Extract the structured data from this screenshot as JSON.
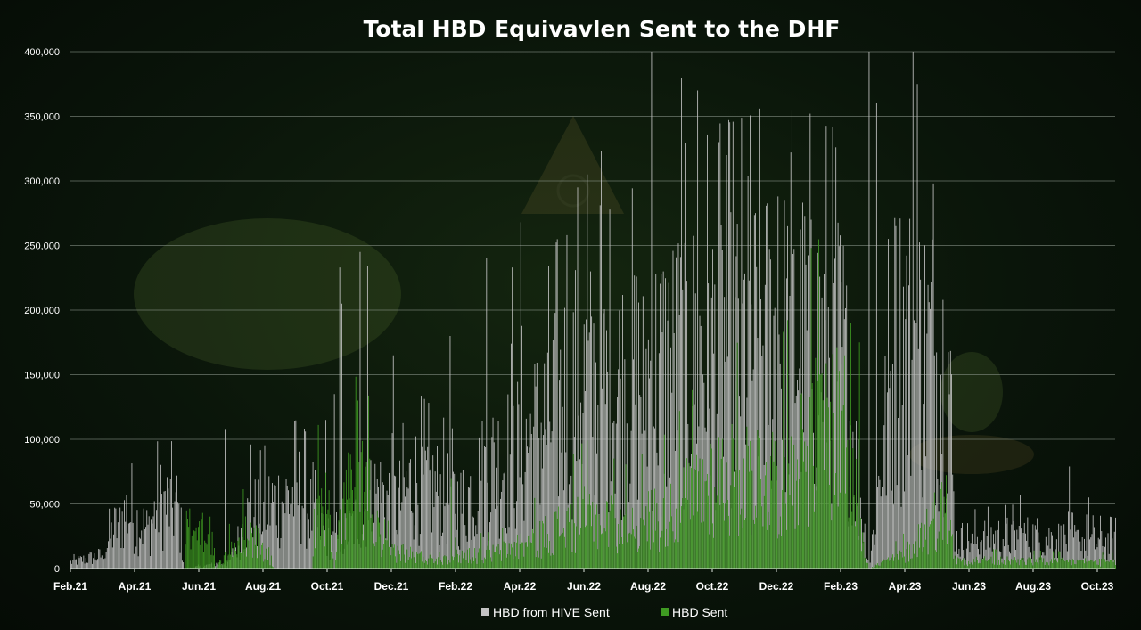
{
  "chart_data": {
    "type": "bar",
    "title": "Total HBD Equivavlen Sent to the DHF",
    "xlabel": "",
    "ylabel": "",
    "ylim": [
      0,
      400000
    ],
    "y_ticks": [
      {
        "value": 0,
        "label": "0"
      },
      {
        "value": 50000,
        "label": "50,000"
      },
      {
        "value": 100000,
        "label": "100,000"
      },
      {
        "value": 150000,
        "label": "150,000"
      },
      {
        "value": 200000,
        "label": "200,000"
      },
      {
        "value": 250000,
        "label": "250,000"
      },
      {
        "value": 300000,
        "label": "300,000"
      },
      {
        "value": 350000,
        "label": "350,000"
      },
      {
        "value": 400000,
        "label": "400,000"
      }
    ],
    "x_ticks": [
      "Feb.21",
      "Apr.21",
      "Jun.21",
      "Aug.21",
      "Oct.21",
      "Dec.21",
      "Feb.22",
      "Apr.22",
      "Jun.22",
      "Aug.22",
      "Oct.22",
      "Dec.22",
      "Feb.23",
      "Apr.23",
      "Jun.23",
      "Aug.23",
      "Oct.23"
    ],
    "legend": {
      "position": "bottom"
    },
    "colors": {
      "hive": "#c4c4c4",
      "hbd": "#3f9a22",
      "grid": "#8d978d"
    },
    "series": [
      {
        "name": "HBD from HIVE Sent",
        "color_key": "hive",
        "anchors": [
          {
            "day": 0,
            "v": 5000
          },
          {
            "day": 28,
            "v": 10000
          },
          {
            "day": 40,
            "v": 30000
          },
          {
            "day": 52,
            "v": 45000
          },
          {
            "day": 72,
            "v": 30000
          },
          {
            "day": 82,
            "v": 52000
          },
          {
            "day": 100,
            "v": 48000
          },
          {
            "day": 106,
            "v": 0
          },
          {
            "day": 148,
            "v": 5000
          },
          {
            "day": 165,
            "v": 40000
          },
          {
            "day": 185,
            "v": 50000
          },
          {
            "day": 200,
            "v": 55000
          },
          {
            "day": 215,
            "v": 60000
          },
          {
            "day": 230,
            "v": 35000
          },
          {
            "day": 245,
            "v": 20000
          },
          {
            "day": 260,
            "v": 30000
          },
          {
            "day": 285,
            "v": 60000
          },
          {
            "day": 305,
            "v": 50000
          },
          {
            "day": 320,
            "v": 70000
          },
          {
            "day": 345,
            "v": 60000
          },
          {
            "day": 365,
            "v": 50000
          },
          {
            "day": 390,
            "v": 80000
          },
          {
            "day": 415,
            "v": 90000
          },
          {
            "day": 440,
            "v": 110000
          },
          {
            "day": 470,
            "v": 150000
          },
          {
            "day": 500,
            "v": 140000
          },
          {
            "day": 530,
            "v": 150000
          },
          {
            "day": 560,
            "v": 160000
          },
          {
            "day": 590,
            "v": 170000
          },
          {
            "day": 620,
            "v": 175000
          },
          {
            "day": 650,
            "v": 180000
          },
          {
            "day": 680,
            "v": 180000
          },
          {
            "day": 700,
            "v": 175000
          },
          {
            "day": 720,
            "v": 170000
          },
          {
            "day": 745,
            "v": 0
          },
          {
            "day": 770,
            "v": 180000
          },
          {
            "day": 800,
            "v": 170000
          },
          {
            "day": 820,
            "v": 155000
          },
          {
            "day": 825,
            "v": 22000
          },
          {
            "day": 870,
            "v": 25000
          },
          {
            "day": 900,
            "v": 25000
          },
          {
            "day": 930,
            "v": 22000
          },
          {
            "day": 975,
            "v": 20000
          }
        ],
        "spikes": [
          {
            "day": 144,
            "v": 108000
          },
          {
            "day": 168,
            "v": 96000
          },
          {
            "day": 198,
            "v": 86000
          },
          {
            "day": 238,
            "v": 115000
          },
          {
            "day": 246,
            "v": 135000
          },
          {
            "day": 251,
            "v": 233000
          },
          {
            "day": 253,
            "v": 205000
          },
          {
            "day": 270,
            "v": 245000
          },
          {
            "day": 277,
            "v": 234000
          },
          {
            "day": 301,
            "v": 165000
          },
          {
            "day": 354,
            "v": 180000
          },
          {
            "day": 388,
            "v": 240000
          },
          {
            "day": 412,
            "v": 233000
          },
          {
            "day": 420,
            "v": 268000
          },
          {
            "day": 463,
            "v": 258000
          },
          {
            "day": 482,
            "v": 305000
          },
          {
            "day": 495,
            "v": 323000
          },
          {
            "day": 542,
            "v": 400000
          },
          {
            "day": 570,
            "v": 380000
          },
          {
            "day": 585,
            "v": 370000
          },
          {
            "day": 605,
            "v": 330000
          },
          {
            "day": 612,
            "v": 320000
          },
          {
            "day": 632,
            "v": 304000
          },
          {
            "day": 660,
            "v": 288000
          },
          {
            "day": 672,
            "v": 322000
          },
          {
            "day": 714,
            "v": 326000
          },
          {
            "day": 745,
            "v": 400000
          },
          {
            "day": 752,
            "v": 360000
          },
          {
            "day": 770,
            "v": 265000
          },
          {
            "day": 786,
            "v": 400000
          },
          {
            "day": 790,
            "v": 375000
          },
          {
            "day": 805,
            "v": 298000
          },
          {
            "day": 886,
            "v": 57000
          },
          {
            "day": 932,
            "v": 79000
          },
          {
            "day": 950,
            "v": 55000
          }
        ]
      },
      {
        "name": "HBD Sent",
        "color_key": "hbd",
        "anchors": [
          {
            "day": 0,
            "v": 0
          },
          {
            "day": 106,
            "v": 0
          },
          {
            "day": 108,
            "v": 37000
          },
          {
            "day": 130,
            "v": 40000
          },
          {
            "day": 135,
            "v": 0
          },
          {
            "day": 150,
            "v": 20000
          },
          {
            "day": 165,
            "v": 35000
          },
          {
            "day": 175,
            "v": 25000
          },
          {
            "day": 190,
            "v": 0
          },
          {
            "day": 225,
            "v": 0
          },
          {
            "day": 228,
            "v": 55000
          },
          {
            "day": 240,
            "v": 60000
          },
          {
            "day": 246,
            "v": 0
          },
          {
            "day": 255,
            "v": 70000
          },
          {
            "day": 275,
            "v": 80000
          },
          {
            "day": 290,
            "v": 20000
          },
          {
            "day": 330,
            "v": 10000
          },
          {
            "day": 400,
            "v": 15000
          },
          {
            "day": 440,
            "v": 30000
          },
          {
            "day": 480,
            "v": 50000
          },
          {
            "day": 520,
            "v": 40000
          },
          {
            "day": 560,
            "v": 55000
          },
          {
            "day": 600,
            "v": 85000
          },
          {
            "day": 640,
            "v": 90000
          },
          {
            "day": 660,
            "v": 85000
          },
          {
            "day": 690,
            "v": 125000
          },
          {
            "day": 720,
            "v": 140000
          },
          {
            "day": 745,
            "v": 0
          },
          {
            "day": 780,
            "v": 15000
          },
          {
            "day": 800,
            "v": 40000
          },
          {
            "day": 820,
            "v": 60000
          },
          {
            "day": 825,
            "v": 8000
          },
          {
            "day": 975,
            "v": 6000
          }
        ],
        "spikes": [
          {
            "day": 252,
            "v": 185000
          },
          {
            "day": 268,
            "v": 130000
          },
          {
            "day": 279,
            "v": 85000
          },
          {
            "day": 355,
            "v": 70000
          },
          {
            "day": 604,
            "v": 160000
          },
          {
            "day": 620,
            "v": 145000
          },
          {
            "day": 700,
            "v": 150000
          },
          {
            "day": 722,
            "v": 165000
          },
          {
            "day": 736,
            "v": 175000
          }
        ]
      }
    ],
    "x_domain_days": [
      0,
      975
    ]
  }
}
